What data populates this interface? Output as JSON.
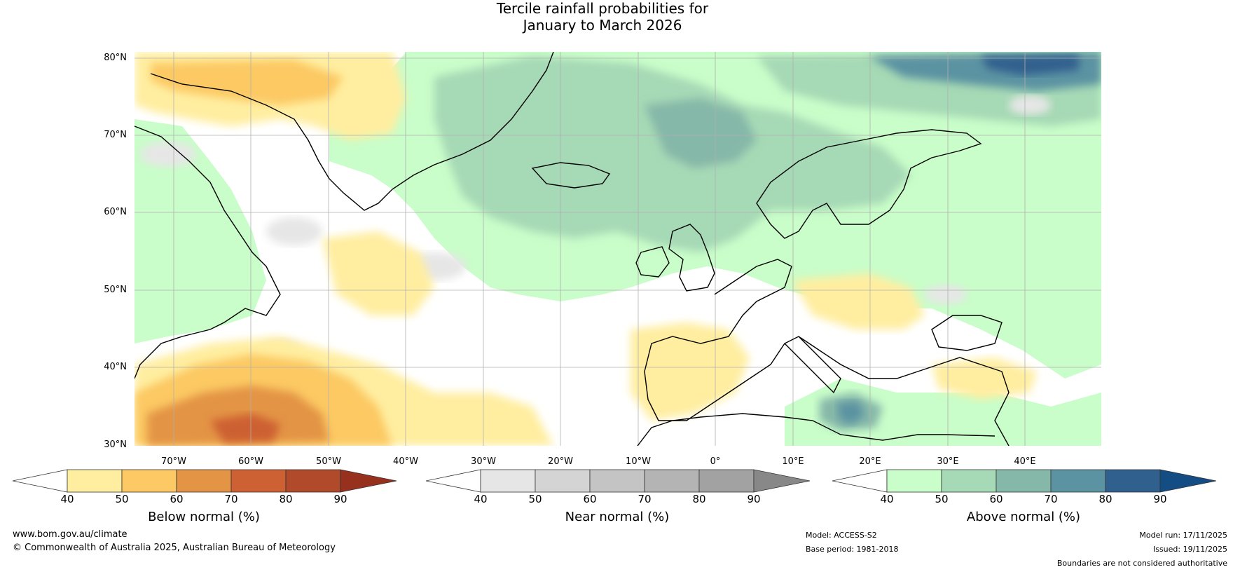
{
  "title": {
    "line1": "Tercile rainfall probabilities for",
    "line2": "January to March 2026"
  },
  "map": {
    "lat_labels": [
      "80°N",
      "70°N",
      "60°N",
      "50°N",
      "40°N",
      "30°N"
    ],
    "lon_labels": [
      "70°W",
      "60°W",
      "50°W",
      "40°W",
      "30°W",
      "20°W",
      "10°W",
      "0°",
      "10°E",
      "20°E",
      "30°E",
      "40°E"
    ],
    "extent": {
      "lon_min": -75,
      "lon_max": 50,
      "lat_min": 30,
      "lat_max": 81
    },
    "colors": {
      "ocean": "#ffffff",
      "grid": "#b0b0b0",
      "coast": "#000000",
      "border": "#888888"
    }
  },
  "colorbars": [
    {
      "name": "Below normal (%)",
      "ticks": [
        "40",
        "50",
        "60",
        "70",
        "80",
        "90"
      ],
      "colors": [
        "#ffffff",
        "#ffeea0",
        "#fcc964",
        "#e39444",
        "#cd6133",
        "#b14a2a",
        "#97311e"
      ]
    },
    {
      "name": "Near normal (%)",
      "ticks": [
        "40",
        "50",
        "60",
        "70",
        "80",
        "90"
      ],
      "colors": [
        "#ffffff",
        "#e6e6e6",
        "#d4d4d4",
        "#c4c4c4",
        "#b4b4b4",
        "#a2a2a2",
        "#888888"
      ]
    },
    {
      "name": "Above normal (%)",
      "ticks": [
        "40",
        "50",
        "60",
        "70",
        "80",
        "90"
      ],
      "colors": [
        "#ffffff",
        "#c9fdc9",
        "#a6d9b5",
        "#86b8a9",
        "#5b93a2",
        "#30608e",
        "#134d84"
      ]
    }
  ],
  "footer": {
    "website": "www.bom.gov.au/climate",
    "copyright": "© Commonwealth of Australia 2025, Australian Bureau of Meteorology",
    "model": "Model: ACCESS-S2",
    "base_period": "Base period: 1981-2018",
    "model_run": "Model run: 17/11/2025",
    "issued": "Issued: 19/11/2025",
    "disclaimer": "Boundaries are not considered authoritative"
  }
}
